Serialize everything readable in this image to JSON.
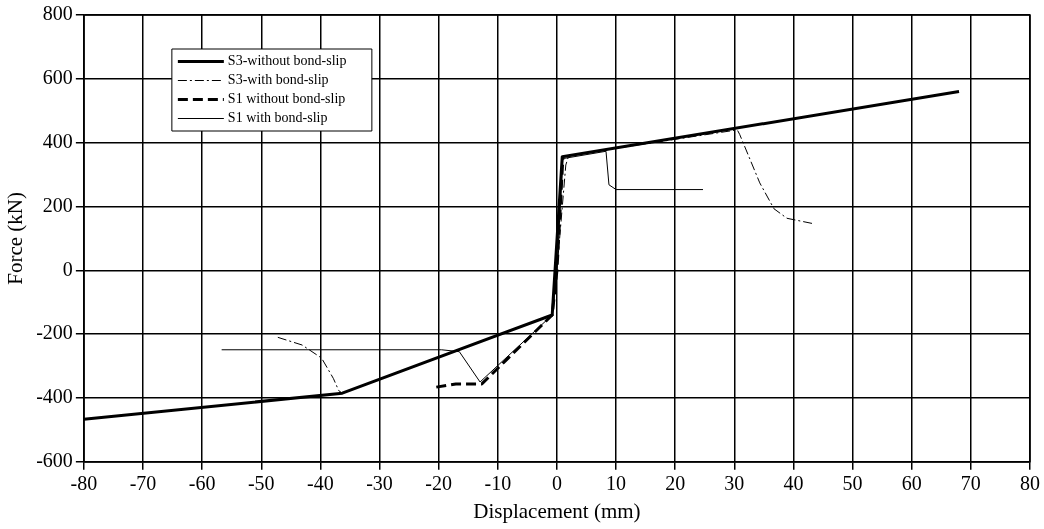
{
  "chart_data": {
    "type": "line",
    "xlabel": "Displacement (mm)",
    "ylabel": "Force (kN)",
    "xlim": [
      -80,
      80
    ],
    "xticks": [
      -80,
      -70,
      -60,
      -50,
      -40,
      -30,
      -20,
      -10,
      0,
      10,
      20,
      30,
      40,
      50,
      60,
      70,
      80
    ],
    "ylim": [
      -600,
      800
    ],
    "yticks": [
      -600,
      -400,
      -200,
      0,
      200,
      400,
      600,
      800
    ],
    "grid": true,
    "legend": "top left",
    "marker": "none",
    "series": [
      {
        "name": "S3-without bond-slip",
        "color": "#000000",
        "line_style": "solid",
        "x": [
          -80,
          -36.3,
          -0.8,
          0.9,
          68
        ],
        "values": [
          -467,
          -385,
          -140,
          356,
          560
        ]
      },
      {
        "name": "S3-with bond-slip",
        "color": "#000000",
        "line_style": "dashdot",
        "x": [
          -47.2,
          -43.1,
          -39.8,
          -37.8,
          -36.9,
          -36.3,
          -0.8,
          0,
          1.5,
          2,
          30.5,
          30.9,
          34.3,
          36.7,
          38.9,
          43.4
        ],
        "values": [
          -210,
          -234,
          -275,
          -339,
          -377,
          -385,
          -140,
          0,
          330,
          360,
          440,
          426,
          274,
          193,
          163,
          146
        ]
      },
      {
        "name": "S1 without bond-slip",
        "color": "#000000",
        "line_style": "dashed",
        "x": [
          -20.4,
          -17.1,
          -12.7,
          -0.8,
          0,
          1
        ],
        "values": [
          -366,
          -356,
          -356,
          -140,
          0,
          350
        ]
      },
      {
        "name": "S1 with bond-slip",
        "color": "#000000",
        "line_style": "solid",
        "x": [
          -56.7,
          -19.5,
          -16.5,
          -13,
          -0.8,
          0,
          1,
          8.3,
          8.8,
          10,
          24.7
        ],
        "values": [
          -249,
          -249,
          -255,
          -350,
          -140,
          0,
          350,
          373,
          268,
          253,
          253
        ]
      }
    ]
  }
}
